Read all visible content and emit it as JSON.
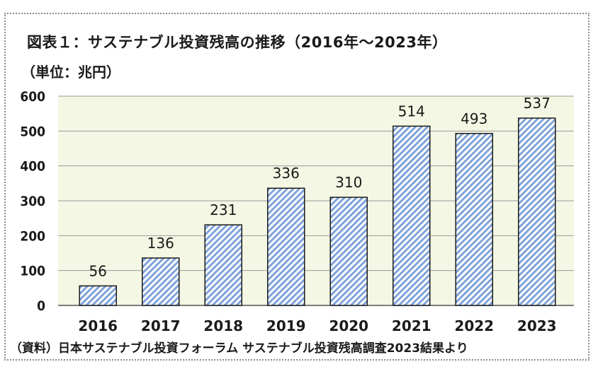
{
  "figure": {
    "title": "図表１：サステナブル投資残高の推移（2016年～2023年）",
    "unit": "（単位：兆円）",
    "source": "（資料）日本サステナブル投資フォーラム サステナブル投資残高調査2023結果より"
  },
  "colors": {
    "plot_background": "#f3f7e3",
    "bar_stripe": "#7fa3d9",
    "bar_fill": "#ffffff",
    "bar_border": "#1a1a1a",
    "gridline": "#9a9a9a"
  },
  "chart_data": {
    "type": "bar",
    "title": "図表１：サステナブル投資残高の推移（2016年～2023年）",
    "ylabel": "（単位：兆円）",
    "xlabel": "",
    "categories": [
      "2016",
      "2017",
      "2018",
      "2019",
      "2020",
      "2021",
      "2022",
      "2023"
    ],
    "values": [
      56,
      136,
      231,
      336,
      310,
      514,
      493,
      537
    ],
    "ylim": [
      0,
      600
    ],
    "yticks": [
      0,
      100,
      200,
      300,
      400,
      500,
      600
    ],
    "grid": true,
    "legend": "none",
    "data_labels": true
  }
}
